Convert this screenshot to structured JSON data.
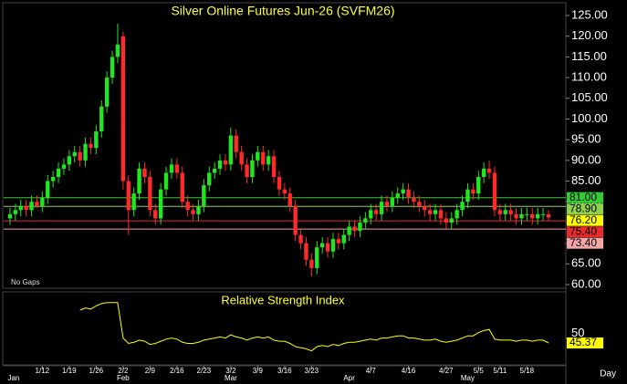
{
  "chart_data": {
    "type": "candlestick",
    "title": "Silver Online Futures Jun-26 (SVFM26)",
    "note": "No Gaps",
    "x_label": "Day",
    "categories": [
      null,
      null,
      null,
      null,
      null,
      null,
      "1/12",
      null,
      null,
      null,
      null,
      "1/19",
      null,
      null,
      null,
      null,
      "1/26",
      null,
      null,
      null,
      null,
      "2/2",
      null,
      null,
      null,
      null,
      "2/9",
      null,
      null,
      null,
      null,
      "2/16",
      null,
      null,
      null,
      null,
      "2/23",
      null,
      null,
      null,
      null,
      "3/2",
      null,
      null,
      null,
      null,
      "3/9",
      null,
      null,
      null,
      null,
      "3/16",
      null,
      null,
      null,
      null,
      "3/23",
      null,
      null,
      null,
      null,
      null,
      null,
      null,
      null,
      null,
      null,
      "4/7",
      null,
      null,
      null,
      null,
      null,
      null,
      "4/16",
      null,
      null,
      null,
      null,
      null,
      null,
      "4/27",
      null,
      null,
      null,
      null,
      null,
      "5/5",
      null,
      null,
      null,
      "5/11",
      null,
      null,
      null,
      null,
      "5/18",
      null,
      null,
      null,
      null
    ],
    "months": [
      "Jan",
      null,
      null,
      null,
      null,
      null,
      null,
      null,
      null,
      null,
      null,
      null,
      null,
      null,
      null,
      null,
      null,
      null,
      null,
      null,
      null,
      "Feb",
      null,
      null,
      null,
      null,
      null,
      null,
      null,
      null,
      null,
      null,
      null,
      null,
      null,
      null,
      null,
      null,
      null,
      null,
      null,
      "Mar",
      null,
      null,
      null,
      null,
      null,
      null,
      null,
      null,
      null,
      null,
      null,
      null,
      null,
      null,
      null,
      null,
      null,
      null,
      null,
      null,
      null,
      "Apr",
      null,
      null,
      null,
      null,
      null,
      null,
      null,
      null,
      null,
      null,
      null,
      null,
      null,
      null,
      null,
      null,
      null,
      null,
      null,
      null,
      null,
      "May",
      null,
      null,
      null,
      null,
      null,
      null,
      null,
      null,
      null,
      null,
      null,
      null,
      null,
      null,
      null
    ],
    "open": [
      76,
      77,
      78,
      79,
      78,
      80,
      79,
      81,
      85,
      86,
      88,
      89,
      91,
      92,
      90,
      94,
      93,
      97,
      103,
      110,
      115,
      120,
      85,
      78,
      82,
      88,
      86,
      78,
      76,
      83,
      87,
      89,
      87,
      80,
      78,
      77,
      79,
      84,
      87,
      88,
      90,
      89,
      96,
      92,
      89,
      86,
      90,
      92,
      89,
      91,
      86,
      83,
      82,
      79,
      72,
      70,
      66,
      64,
      69,
      70,
      68,
      71,
      70,
      72,
      74,
      73,
      75,
      76,
      78,
      77,
      80,
      79,
      81,
      82,
      83,
      81,
      80,
      79,
      78,
      77,
      78,
      76,
      75,
      76,
      78,
      80,
      83,
      82,
      86,
      88,
      87,
      78,
      77,
      78,
      77,
      76,
      77,
      77,
      76,
      77,
      77
    ],
    "high": [
      78.5,
      79.5,
      80.5,
      80.5,
      81.5,
      81.5,
      82.5,
      86.5,
      87.5,
      89.5,
      90.5,
      92.5,
      93.5,
      93.5,
      95.5,
      95.5,
      98.5,
      104.5,
      111.5,
      116.5,
      123,
      121,
      86.5,
      83.5,
      89.5,
      89.5,
      87.5,
      79.5,
      84.5,
      88.5,
      90.5,
      90.5,
      88.5,
      81.5,
      79.5,
      80.5,
      85.5,
      88.5,
      89.5,
      91.5,
      91.5,
      98,
      97.5,
      93.5,
      90.5,
      91.5,
      93.5,
      93.5,
      92.5,
      92.5,
      87.5,
      84.5,
      83.5,
      80.5,
      73.5,
      71.5,
      67.5,
      70.5,
      71.5,
      71.5,
      72.5,
      72.5,
      73.5,
      75.5,
      75.5,
      76.5,
      77.5,
      79.5,
      79.5,
      81.5,
      81.5,
      82.5,
      83.5,
      84.5,
      84.5,
      82.5,
      81.5,
      80.5,
      79.5,
      79.5,
      79.5,
      77.5,
      77.5,
      79.5,
      81.5,
      84.5,
      84.5,
      87.5,
      89.5,
      90,
      88.5,
      79.5,
      79.5,
      79.5,
      78.5,
      78.5,
      78.5,
      78.5,
      78.5,
      78.5,
      78
    ],
    "low": [
      74.5,
      75.5,
      76.5,
      76.5,
      76.5,
      78.5,
      77.5,
      79.5,
      83.5,
      84.5,
      86.5,
      87.5,
      89.5,
      88.5,
      88.5,
      91.5,
      91.5,
      95.5,
      101.5,
      108.5,
      113.5,
      83,
      72,
      76.5,
      80.5,
      84.5,
      76.5,
      74.5,
      74.5,
      81.5,
      85.5,
      85.5,
      78.5,
      76.5,
      75.5,
      75.5,
      77.5,
      82.5,
      85.5,
      86.5,
      87.5,
      87.5,
      90.5,
      87.5,
      84.5,
      84.5,
      88.5,
      87.5,
      87.5,
      84.5,
      81.5,
      80.5,
      77.5,
      70.5,
      68.5,
      64.5,
      62,
      62.5,
      67.5,
      66.5,
      66.5,
      68.5,
      68.5,
      70.5,
      71.5,
      71.5,
      73.5,
      74.5,
      75.5,
      75.5,
      77.5,
      77.5,
      79.5,
      80.5,
      79.5,
      78.5,
      77.5,
      76.5,
      75.5,
      75.5,
      74.5,
      73.5,
      73.5,
      74.5,
      76.5,
      78.5,
      80.5,
      80.5,
      84.5,
      85.5,
      76.5,
      75.5,
      75.5,
      75.5,
      74.5,
      74.5,
      75.5,
      74.5,
      74.5,
      75.5,
      75.5
    ],
    "close": [
      77,
      78,
      79,
      78,
      80,
      79,
      81,
      85,
      86,
      88,
      89,
      91,
      92,
      90,
      94,
      93,
      97,
      103,
      110,
      115,
      118,
      85,
      78,
      82,
      88,
      86,
      78,
      76,
      83,
      87,
      89,
      87,
      80,
      78,
      77,
      79,
      84,
      87,
      88,
      90,
      89,
      96,
      92,
      89,
      86,
      90,
      92,
      89,
      91,
      86,
      83,
      82,
      79,
      72,
      70,
      66,
      64,
      69,
      70,
      68,
      71,
      70,
      72,
      74,
      73,
      75,
      76,
      78,
      77,
      80,
      79,
      81,
      82,
      83,
      81,
      80,
      79,
      78,
      77,
      78,
      76,
      75,
      76,
      78,
      80,
      83,
      82,
      86,
      88,
      87,
      78,
      77,
      78,
      77,
      76,
      77,
      77,
      76,
      77,
      77,
      76.2
    ],
    "up_color": "#22e622",
    "down_color": "#ff2a2a",
    "ylim": [
      60,
      125
    ],
    "yticks": [
      {
        "value": 60,
        "label": "60.00"
      },
      {
        "value": 65,
        "label": "65.00"
      },
      {
        "value": 70,
        "label": "70.00"
      },
      {
        "value": 75,
        "label": "75.00"
      },
      {
        "value": 80,
        "label": "80.00"
      },
      {
        "value": 85,
        "label": "85.00"
      },
      {
        "value": 90,
        "label": "90.00"
      },
      {
        "value": 95,
        "label": "95.00"
      },
      {
        "value": 100,
        "label": "100.00"
      },
      {
        "value": 105,
        "label": "105.00"
      },
      {
        "value": 110,
        "label": "110.00"
      },
      {
        "value": 115,
        "label": "115.00"
      },
      {
        "value": 120,
        "label": "120.00"
      },
      {
        "value": 125,
        "label": "125.00"
      }
    ],
    "levels": [
      {
        "value": 81,
        "label": "81.00",
        "color": "#33cc33"
      },
      {
        "value": 78.9,
        "label": "78.90",
        "color": "#8fd14f"
      },
      {
        "value": 75.4,
        "label": "75.40",
        "color": "#e52b2b"
      },
      {
        "value": 73.4,
        "label": "73.40",
        "color": "#f4a6a6"
      }
    ],
    "last_price": {
      "value": 76.2,
      "label": "76.20",
      "color": "#ffff00"
    },
    "rsi": {
      "title": "Relative Strength Index",
      "color": "#ffff00",
      "ylim": [
        25,
        93
      ],
      "yticks": [
        50
      ],
      "values": [
        null,
        null,
        null,
        null,
        null,
        null,
        null,
        null,
        null,
        null,
        null,
        null,
        null,
        76,
        78,
        77,
        80,
        82,
        83,
        83,
        83,
        50,
        45,
        46,
        48,
        47,
        44,
        45,
        47,
        49,
        50,
        49,
        46,
        45,
        45,
        46,
        48,
        49,
        50,
        51,
        50,
        53,
        51,
        50,
        48,
        50,
        51,
        50,
        51,
        48,
        47,
        47,
        45,
        42,
        41,
        40,
        38,
        42,
        43,
        42,
        44,
        43,
        45,
        46,
        46,
        47,
        48,
        49,
        48,
        50,
        50,
        51,
        52,
        52,
        50,
        50,
        49,
        48,
        48,
        49,
        47,
        46,
        47,
        48,
        50,
        52,
        52,
        55,
        57,
        58,
        49,
        48,
        48,
        48,
        47,
        48,
        48,
        47,
        48,
        48,
        45.37
      ]
    }
  }
}
